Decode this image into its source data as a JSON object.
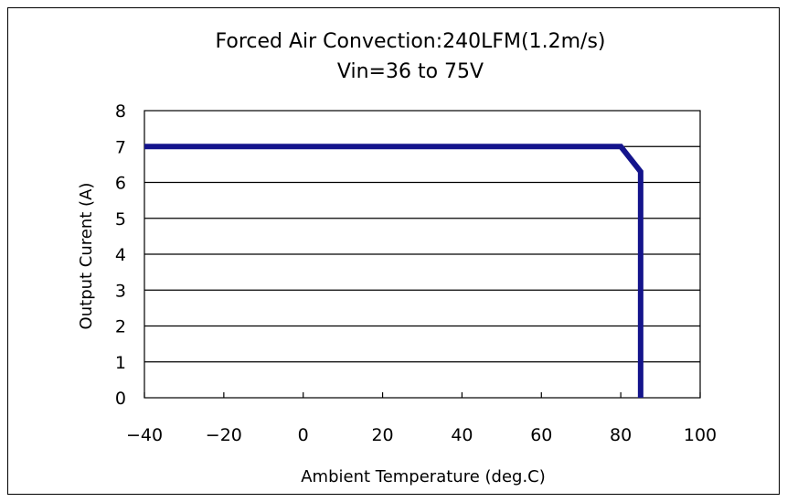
{
  "chart_data": {
    "type": "line",
    "title": "Forced Air Convection:240LFM(1.2m/s)",
    "subtitle": "Vin=36 to 75V",
    "xlabel": "Ambient Temperature (deg.C)",
    "ylabel": "Output Curent (A)",
    "xlim": [
      -40,
      100
    ],
    "ylim": [
      0,
      8
    ],
    "xticks": [
      "-40",
      "-20",
      "0",
      "20",
      "40",
      "60",
      "80",
      "100"
    ],
    "yticks": [
      "0",
      "1",
      "2",
      "3",
      "4",
      "5",
      "6",
      "7",
      "8"
    ],
    "grid": "horizontal",
    "series": [
      {
        "color": "#14148c",
        "x": [
          -40,
          80,
          85,
          85
        ],
        "y": [
          7,
          7,
          6.3,
          0
        ]
      }
    ]
  }
}
